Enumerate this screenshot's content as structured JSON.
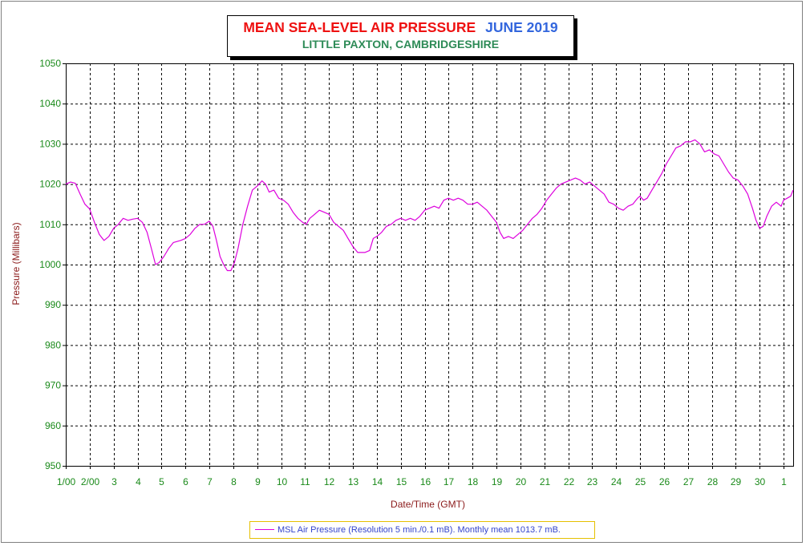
{
  "chart_data": {
    "type": "line",
    "title": "MEAN SEA-LEVEL AIR PRESSURE",
    "title_period": "JUNE 2019",
    "subtitle": "LITTLE PAXTON, CAMBRIDGESHIRE",
    "xlabel": "Date/Time (GMT)",
    "ylabel": "Pressure (Millibars)",
    "ylim": [
      950,
      1050
    ],
    "yticks": [
      950,
      960,
      970,
      980,
      990,
      1000,
      1010,
      1020,
      1030,
      1040,
      1050
    ],
    "xlim": [
      1,
      31.4
    ],
    "xticks": [
      {
        "x": 1,
        "label": "1/00"
      },
      {
        "x": 2,
        "label": "2/00"
      },
      {
        "x": 3,
        "label": "3"
      },
      {
        "x": 4,
        "label": "4"
      },
      {
        "x": 5,
        "label": "5"
      },
      {
        "x": 6,
        "label": "6"
      },
      {
        "x": 7,
        "label": "7"
      },
      {
        "x": 8,
        "label": "8"
      },
      {
        "x": 9,
        "label": "9"
      },
      {
        "x": 10,
        "label": "10"
      },
      {
        "x": 11,
        "label": "11"
      },
      {
        "x": 12,
        "label": "12"
      },
      {
        "x": 13,
        "label": "13"
      },
      {
        "x": 14,
        "label": "14"
      },
      {
        "x": 15,
        "label": "15"
      },
      {
        "x": 16,
        "label": "16"
      },
      {
        "x": 17,
        "label": "17"
      },
      {
        "x": 18,
        "label": "18"
      },
      {
        "x": 19,
        "label": "19"
      },
      {
        "x": 20,
        "label": "20"
      },
      {
        "x": 21,
        "label": "21"
      },
      {
        "x": 22,
        "label": "22"
      },
      {
        "x": 23,
        "label": "23"
      },
      {
        "x": 24,
        "label": "24"
      },
      {
        "x": 25,
        "label": "25"
      },
      {
        "x": 26,
        "label": "26"
      },
      {
        "x": 27,
        "label": "27"
      },
      {
        "x": 28,
        "label": "28"
      },
      {
        "x": 29,
        "label": "29"
      },
      {
        "x": 30,
        "label": "30"
      },
      {
        "x": 31,
        "label": "1"
      }
    ],
    "grid": true,
    "legend_position": "bottom-center",
    "series": [
      {
        "name": "MSL Air Pressure (Resolution 5 min./0.1 mB). Monthly mean 1013.7 mB.",
        "color": "#dd00dd",
        "points": [
          [
            1.0,
            1020.0
          ],
          [
            1.2,
            1020.5
          ],
          [
            1.4,
            1020.2
          ],
          [
            1.6,
            1017.5
          ],
          [
            1.8,
            1015.0
          ],
          [
            2.0,
            1013.8
          ],
          [
            2.2,
            1010.5
          ],
          [
            2.4,
            1007.5
          ],
          [
            2.6,
            1006.0
          ],
          [
            2.8,
            1007.0
          ],
          [
            3.0,
            1009.0
          ],
          [
            3.2,
            1010.0
          ],
          [
            3.4,
            1011.5
          ],
          [
            3.6,
            1011.0
          ],
          [
            3.8,
            1011.3
          ],
          [
            4.0,
            1011.5
          ],
          [
            4.2,
            1010.5
          ],
          [
            4.4,
            1008.0
          ],
          [
            4.6,
            1003.5
          ],
          [
            4.75,
            1000.0
          ],
          [
            4.9,
            1000.5
          ],
          [
            5.1,
            1002.0
          ],
          [
            5.3,
            1004.0
          ],
          [
            5.5,
            1005.5
          ],
          [
            5.8,
            1006.0
          ],
          [
            6.0,
            1006.5
          ],
          [
            6.2,
            1007.5
          ],
          [
            6.4,
            1009.0
          ],
          [
            6.6,
            1010.0
          ],
          [
            6.8,
            1010.0
          ],
          [
            7.0,
            1010.8
          ],
          [
            7.15,
            1009.5
          ],
          [
            7.3,
            1006.0
          ],
          [
            7.45,
            1002.0
          ],
          [
            7.6,
            1000.0
          ],
          [
            7.75,
            998.5
          ],
          [
            7.9,
            998.5
          ],
          [
            8.05,
            1000.5
          ],
          [
            8.2,
            1004.0
          ],
          [
            8.4,
            1010.0
          ],
          [
            8.6,
            1014.5
          ],
          [
            8.8,
            1018.5
          ],
          [
            9.0,
            1019.5
          ],
          [
            9.2,
            1020.8
          ],
          [
            9.35,
            1020.0
          ],
          [
            9.5,
            1018.0
          ],
          [
            9.7,
            1018.5
          ],
          [
            9.9,
            1016.5
          ],
          [
            10.1,
            1016.0
          ],
          [
            10.3,
            1015.0
          ],
          [
            10.5,
            1013.0
          ],
          [
            10.7,
            1011.5
          ],
          [
            10.9,
            1010.5
          ],
          [
            11.05,
            1010.0
          ],
          [
            11.2,
            1011.5
          ],
          [
            11.4,
            1012.5
          ],
          [
            11.6,
            1013.5
          ],
          [
            11.8,
            1013.0
          ],
          [
            12.0,
            1012.5
          ],
          [
            12.2,
            1010.5
          ],
          [
            12.4,
            1009.5
          ],
          [
            12.6,
            1008.5
          ],
          [
            12.8,
            1006.5
          ],
          [
            13.0,
            1004.5
          ],
          [
            13.2,
            1003.0
          ],
          [
            13.5,
            1003.0
          ],
          [
            13.7,
            1003.5
          ],
          [
            13.85,
            1006.5
          ],
          [
            14.0,
            1007.0
          ],
          [
            14.2,
            1008.0
          ],
          [
            14.4,
            1009.5
          ],
          [
            14.6,
            1010.0
          ],
          [
            14.8,
            1011.0
          ],
          [
            15.0,
            1011.5
          ],
          [
            15.2,
            1011.0
          ],
          [
            15.4,
            1011.5
          ],
          [
            15.6,
            1011.0
          ],
          [
            15.8,
            1012.0
          ],
          [
            16.0,
            1013.5
          ],
          [
            16.2,
            1014.0
          ],
          [
            16.4,
            1014.5
          ],
          [
            16.6,
            1014.0
          ],
          [
            16.8,
            1016.0
          ],
          [
            17.0,
            1016.5
          ],
          [
            17.2,
            1016.0
          ],
          [
            17.4,
            1016.5
          ],
          [
            17.6,
            1016.0
          ],
          [
            17.8,
            1015.0
          ],
          [
            18.0,
            1015.0
          ],
          [
            18.2,
            1015.5
          ],
          [
            18.4,
            1014.5
          ],
          [
            18.6,
            1013.5
          ],
          [
            18.8,
            1012.0
          ],
          [
            19.0,
            1010.5
          ],
          [
            19.15,
            1008.0
          ],
          [
            19.3,
            1006.5
          ],
          [
            19.5,
            1007.0
          ],
          [
            19.7,
            1006.5
          ],
          [
            19.9,
            1007.5
          ],
          [
            20.1,
            1008.5
          ],
          [
            20.3,
            1010.0
          ],
          [
            20.5,
            1011.5
          ],
          [
            20.7,
            1012.5
          ],
          [
            20.9,
            1014.0
          ],
          [
            21.1,
            1016.0
          ],
          [
            21.3,
            1017.5
          ],
          [
            21.5,
            1019.0
          ],
          [
            21.7,
            1020.0
          ],
          [
            21.9,
            1020.5
          ],
          [
            22.1,
            1021.0
          ],
          [
            22.3,
            1021.5
          ],
          [
            22.5,
            1021.0
          ],
          [
            22.7,
            1020.0
          ],
          [
            22.9,
            1020.5
          ],
          [
            23.1,
            1019.5
          ],
          [
            23.3,
            1018.5
          ],
          [
            23.5,
            1017.5
          ],
          [
            23.7,
            1015.5
          ],
          [
            23.9,
            1015.0
          ],
          [
            24.1,
            1014.0
          ],
          [
            24.3,
            1013.5
          ],
          [
            24.5,
            1014.5
          ],
          [
            24.7,
            1015.0
          ],
          [
            24.9,
            1016.5
          ],
          [
            25.0,
            1017.0
          ],
          [
            25.15,
            1016.0
          ],
          [
            25.3,
            1016.5
          ],
          [
            25.5,
            1018.5
          ],
          [
            25.7,
            1020.5
          ],
          [
            25.9,
            1022.5
          ],
          [
            26.1,
            1025.0
          ],
          [
            26.3,
            1027.0
          ],
          [
            26.5,
            1029.0
          ],
          [
            26.7,
            1029.5
          ],
          [
            26.9,
            1030.5
          ],
          [
            27.1,
            1030.5
          ],
          [
            27.3,
            1031.0
          ],
          [
            27.5,
            1030.0
          ],
          [
            27.7,
            1028.0
          ],
          [
            27.9,
            1028.5
          ],
          [
            28.1,
            1027.5
          ],
          [
            28.3,
            1027.0
          ],
          [
            28.5,
            1025.0
          ],
          [
            28.7,
            1023.0
          ],
          [
            28.9,
            1021.5
          ],
          [
            29.1,
            1021.0
          ],
          [
            29.3,
            1019.5
          ],
          [
            29.5,
            1017.5
          ],
          [
            29.7,
            1014.0
          ],
          [
            29.85,
            1011.0
          ],
          [
            30.0,
            1009.0
          ],
          [
            30.15,
            1009.5
          ],
          [
            30.3,
            1012.0
          ],
          [
            30.5,
            1014.5
          ],
          [
            30.7,
            1015.5
          ],
          [
            30.9,
            1014.5
          ],
          [
            31.0,
            1016.0
          ],
          [
            31.15,
            1016.5
          ],
          [
            31.3,
            1017.0
          ],
          [
            31.4,
            1018.5
          ]
        ]
      }
    ]
  }
}
